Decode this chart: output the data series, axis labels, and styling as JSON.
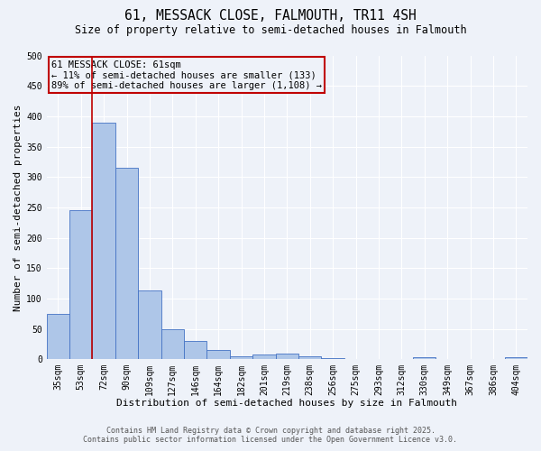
{
  "title_line1": "61, MESSACK CLOSE, FALMOUTH, TR11 4SH",
  "title_line2": "Size of property relative to semi-detached houses in Falmouth",
  "xlabel": "Distribution of semi-detached houses by size in Falmouth",
  "ylabel": "Number of semi-detached properties",
  "categories": [
    "35sqm",
    "53sqm",
    "72sqm",
    "90sqm",
    "109sqm",
    "127sqm",
    "146sqm",
    "164sqm",
    "182sqm",
    "201sqm",
    "219sqm",
    "238sqm",
    "256sqm",
    "275sqm",
    "293sqm",
    "312sqm",
    "330sqm",
    "349sqm",
    "367sqm",
    "386sqm",
    "404sqm"
  ],
  "values": [
    75,
    245,
    390,
    315,
    113,
    50,
    30,
    15,
    5,
    8,
    9,
    5,
    2,
    1,
    1,
    0,
    4,
    0,
    0,
    0,
    4
  ],
  "bar_color": "#aec6e8",
  "bar_edge_color": "#4472c4",
  "vline_x": 1.5,
  "vline_color": "#c00000",
  "annotation_text": "61 MESSACK CLOSE: 61sqm\n← 11% of semi-detached houses are smaller (133)\n89% of semi-detached houses are larger (1,108) →",
  "annotation_box_edgecolor": "#c00000",
  "annotation_fontsize": 7.5,
  "ylim": [
    0,
    500
  ],
  "yticks": [
    0,
    50,
    100,
    150,
    200,
    250,
    300,
    350,
    400,
    450,
    500
  ],
  "footer_line1": "Contains HM Land Registry data © Crown copyright and database right 2025.",
  "footer_line2": "Contains public sector information licensed under the Open Government Licence v3.0.",
  "background_color": "#eef2f9",
  "grid_color": "#ffffff",
  "title_fontsize": 10.5,
  "subtitle_fontsize": 8.5,
  "axis_label_fontsize": 8,
  "tick_fontsize": 7,
  "footer_fontsize": 6
}
